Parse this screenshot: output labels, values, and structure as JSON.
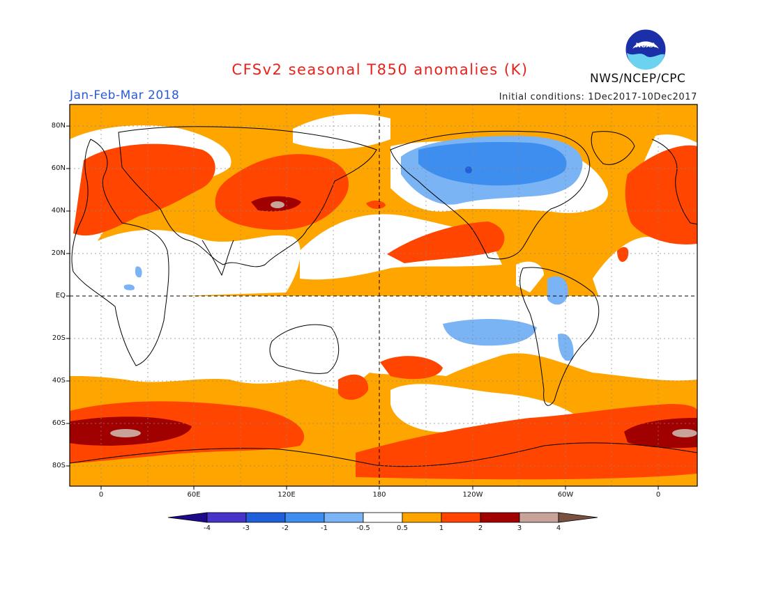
{
  "title": "CFSv2 seasonal T850 anomalies (K)",
  "agency": "NWS/NCEP/CPC",
  "logo_text": "NOAA",
  "season": "Jan-Feb-Mar 2018",
  "initial_conditions": "Initial conditions: 1Dec2017-10Dec2017",
  "lat_labels": [
    "80N",
    "60N",
    "40N",
    "20N",
    "EQ",
    "20S",
    "40S",
    "60S",
    "80S"
  ],
  "lon_labels": [
    "0",
    "60E",
    "120E",
    "180",
    "120W",
    "60W",
    "0"
  ],
  "colorbar": {
    "labels": [
      "-4",
      "-3",
      "-2",
      "-1",
      "-0.5",
      "0.5",
      "1",
      "2",
      "3",
      "4"
    ],
    "colors": [
      "#1c0a8a",
      "#4633c8",
      "#1f5fd9",
      "#3e8ef0",
      "#7ab4f5",
      "#ffffff",
      "#ffa500",
      "#ff4500",
      "#a00000",
      "#c8a39a",
      "#7a5040"
    ]
  }
}
